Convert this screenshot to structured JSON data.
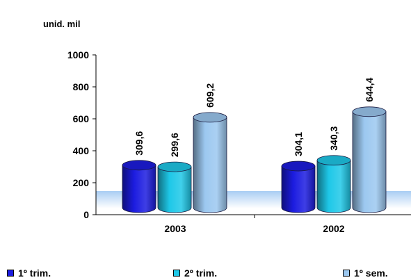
{
  "chart_data": {
    "type": "bar",
    "unit_label": "unid. mil",
    "categories": [
      "2003",
      "2002"
    ],
    "series": [
      {
        "name": "1º trim.",
        "values": [
          309.6,
          304.1
        ],
        "labels": [
          "309,6",
          "304,1"
        ],
        "color": "#1c1ce0"
      },
      {
        "name": "2º trim.",
        "values": [
          299.6,
          340.3
        ],
        "labels": [
          "299,6",
          "340,3"
        ],
        "color": "#1ec8e8"
      },
      {
        "name": "1º sem.",
        "values": [
          609.2,
          644.4
        ],
        "labels": [
          "609,2",
          "644,4"
        ],
        "color": "#9cc8f0"
      }
    ],
    "ylim": [
      0,
      1000
    ],
    "yticks": [
      "0",
      "200",
      "400",
      "600",
      "800",
      "1000"
    ],
    "legend_position": "bottom",
    "grid": false
  }
}
